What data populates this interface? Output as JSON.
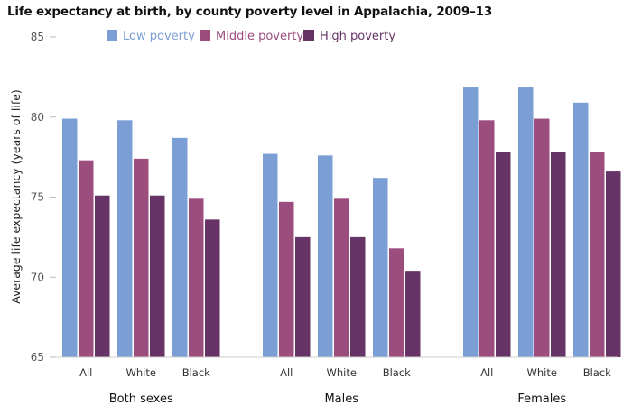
{
  "chart_data": {
    "type": "bar",
    "title": "Life expectancy at birth, by county poverty level in Appalachia, 2009–13",
    "ylabel": "Average life expectancy (years of life)",
    "xlabel": "",
    "ylim": [
      65,
      85
    ],
    "yticks": [
      65,
      70,
      75,
      80,
      85
    ],
    "grid": false,
    "legend_position": "top",
    "groups": [
      {
        "name": "Both sexes",
        "categories": [
          "All",
          "White",
          "Black"
        ]
      },
      {
        "name": "Males",
        "categories": [
          "All",
          "White",
          "Black"
        ]
      },
      {
        "name": "Females",
        "categories": [
          "All",
          "White",
          "Black"
        ]
      }
    ],
    "series": [
      {
        "name": "Low poverty",
        "color": "#7b9fd4",
        "values": [
          79.9,
          79.8,
          78.7,
          77.7,
          77.6,
          76.2,
          81.9,
          81.9,
          80.9
        ]
      },
      {
        "name": "Middle poverty",
        "color": "#9b4d7e",
        "values": [
          77.3,
          77.4,
          74.9,
          74.7,
          74.9,
          71.8,
          79.8,
          79.9,
          77.8
        ]
      },
      {
        "name": "High poverty",
        "color": "#663366",
        "values": [
          75.1,
          75.1,
          73.6,
          72.5,
          72.5,
          70.4,
          77.8,
          77.8,
          76.6
        ]
      }
    ]
  }
}
